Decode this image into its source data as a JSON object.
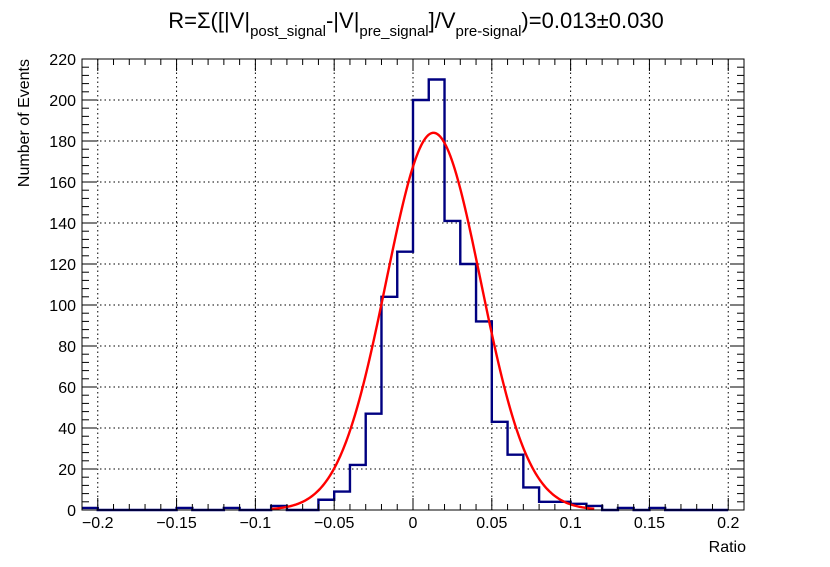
{
  "chart_data": {
    "type": "histogram",
    "title": {
      "parts": [
        {
          "t": "R=Σ([|V|"
        },
        {
          "t": "post_signal",
          "sub": true
        },
        {
          "t": "-|V|"
        },
        {
          "t": "pre_signal",
          "sub": true
        },
        {
          "t": "]/V"
        },
        {
          "t": "pre-signal",
          "sub": true
        },
        {
          "t": ")=0.013±0.030"
        }
      ]
    },
    "xlabel": "Ratio",
    "ylabel": "Number of Events",
    "xlim": [
      -0.21,
      0.21
    ],
    "ylim": [
      0,
      220
    ],
    "xticks": [
      -0.2,
      -0.15,
      -0.1,
      -0.05,
      0,
      0.05,
      0.1,
      0.15,
      0.2
    ],
    "xtick_labels": [
      "−0.2",
      "−0.15",
      "−0.1",
      "−0.05",
      "0",
      "0.05",
      "0.1",
      "0.15",
      "0.2"
    ],
    "yticks": [
      0,
      20,
      40,
      60,
      80,
      100,
      120,
      140,
      160,
      180,
      200,
      220
    ],
    "ytick_labels": [
      "0",
      "20",
      "40",
      "60",
      "80",
      "100",
      "120",
      "140",
      "160",
      "180",
      "200",
      "220"
    ],
    "grid": true,
    "series": [
      {
        "kind": "histogram",
        "color": "#000080",
        "bin_edges": [
          -0.21,
          -0.2,
          -0.19,
          -0.18,
          -0.17,
          -0.16,
          -0.15,
          -0.14,
          -0.13,
          -0.12,
          -0.11,
          -0.1,
          -0.09,
          -0.08,
          -0.07,
          -0.06,
          -0.05,
          -0.04,
          -0.03,
          -0.02,
          -0.01,
          0.0,
          0.01,
          0.02,
          0.03,
          0.04,
          0.05,
          0.06,
          0.07,
          0.08,
          0.09,
          0.1,
          0.11,
          0.12,
          0.13,
          0.14,
          0.15,
          0.16,
          0.17,
          0.18,
          0.19,
          0.2
        ],
        "counts": [
          1,
          0,
          0,
          0,
          0,
          0,
          1,
          0,
          0,
          1,
          0,
          0,
          2,
          0,
          0,
          5,
          9,
          22,
          47,
          104,
          126,
          200,
          210,
          141,
          120,
          92,
          43,
          27,
          11,
          4,
          4,
          3,
          2,
          0,
          1,
          0,
          1,
          0,
          0,
          0,
          0
        ]
      },
      {
        "kind": "gaussian_fit",
        "color": "#ff0000",
        "amplitude": 184,
        "mean": 0.013,
        "sigma": 0.03
      }
    ]
  }
}
